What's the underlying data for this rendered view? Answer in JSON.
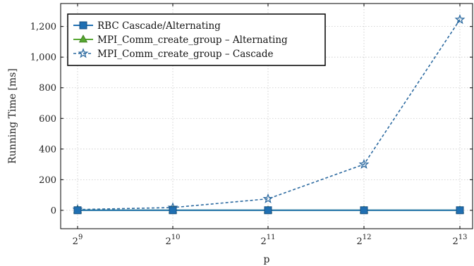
{
  "chart_data": {
    "type": "line",
    "xlabel": "p",
    "ylabel": "Running Time [ms]",
    "x_scale": "log2",
    "x": [
      512,
      1024,
      2048,
      4096,
      8192
    ],
    "x_tick_labels": [
      {
        "base": "2",
        "exp": "9"
      },
      {
        "base": "2",
        "exp": "10"
      },
      {
        "base": "2",
        "exp": "11"
      },
      {
        "base": "2",
        "exp": "12"
      },
      {
        "base": "2",
        "exp": "13"
      }
    ],
    "y_ticks": [
      0,
      200,
      400,
      600,
      800,
      1000,
      1200
    ],
    "y_tick_labels": [
      "0",
      "200",
      "400",
      "600",
      "800",
      "1,000",
      "1,200"
    ],
    "ylim": [
      -120,
      1350
    ],
    "grid": true,
    "legend_position": "top-left",
    "series": [
      {
        "name": "RBC Cascade/Alternating",
        "values": [
          0.5,
          0.5,
          0.5,
          0.5,
          0.5
        ],
        "color": "#1f6fb2",
        "marker": "square",
        "line": "solid"
      },
      {
        "name": "MPI_Comm_create_group – Alternating",
        "values": [
          0.5,
          0.5,
          0.5,
          0.5,
          0.5
        ],
        "color": "#55a630",
        "marker": "triangle",
        "line": "solid"
      },
      {
        "name": "MPI_Comm_create_group – Cascade",
        "values": [
          5,
          18,
          75,
          300,
          1245
        ],
        "color": "#2c6aa0",
        "marker": "star",
        "line": "dashed"
      }
    ]
  }
}
